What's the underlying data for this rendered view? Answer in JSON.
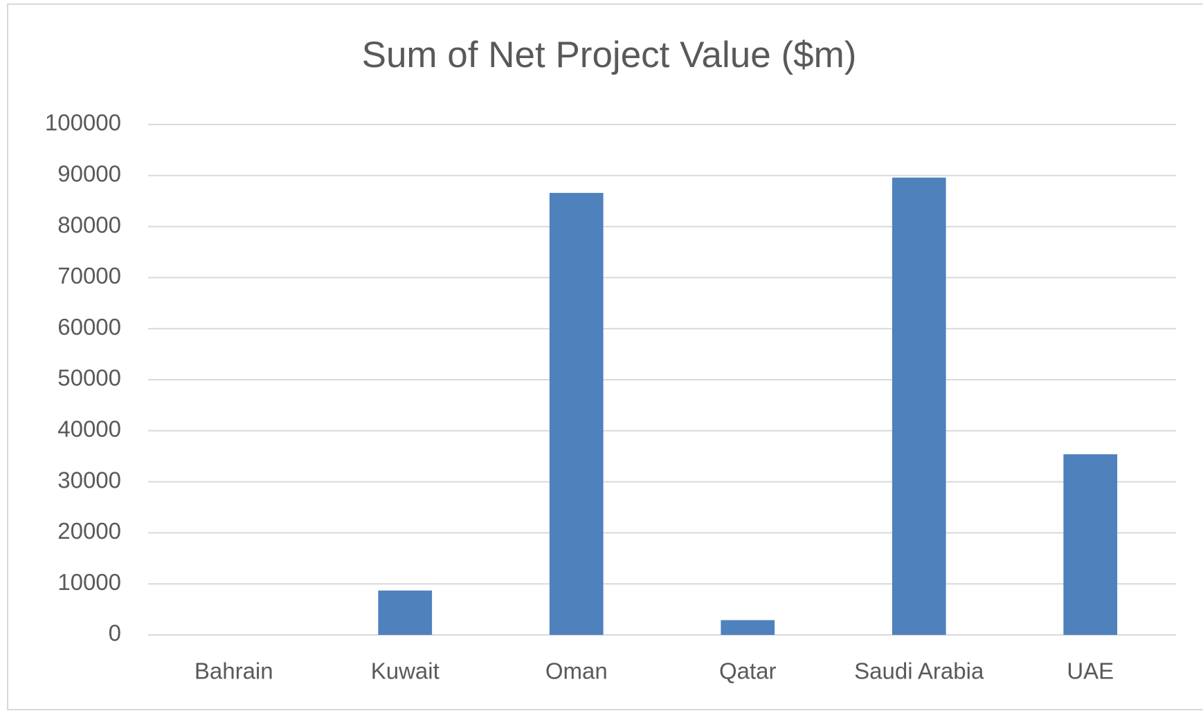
{
  "chart_data": {
    "type": "bar",
    "title": "Sum of Net Project Value ($m)",
    "categories": [
      "Bahrain",
      "Kuwait",
      "Oman",
      "Qatar",
      "Saudi Arabia",
      "UAE"
    ],
    "values": [
      0,
      8700,
      86600,
      2900,
      89600,
      35400
    ],
    "color": "#4f81bd",
    "ylim": [
      0,
      100000
    ],
    "yticks": [
      0,
      10000,
      20000,
      30000,
      40000,
      50000,
      60000,
      70000,
      80000,
      90000,
      100000
    ],
    "grid": true
  }
}
